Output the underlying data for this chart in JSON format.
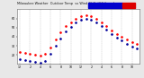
{
  "title": "Milwaukee Weather  Outdoor Temp  vs Wind Chill  (24 Hours)",
  "title_fontsize": 2.5,
  "background_color": "#e8e8e8",
  "plot_bg": "#ffffff",
  "legend_temp_color": "#dd0000",
  "legend_wind_color": "#0000cc",
  "tick_fontsize": 2.3,
  "hours": [
    0,
    1,
    2,
    3,
    4,
    5,
    6,
    7,
    8,
    9,
    10,
    11,
    12,
    13,
    14,
    15,
    16,
    17,
    18,
    19,
    20,
    21,
    22,
    23
  ],
  "temp": [
    23,
    22,
    21,
    20,
    19,
    21,
    28,
    37,
    45,
    52,
    56,
    60,
    63,
    64,
    63,
    60,
    56,
    52,
    47,
    43,
    40,
    37,
    34,
    32
  ],
  "windchill": [
    15,
    14,
    13,
    12,
    11,
    13,
    21,
    30,
    38,
    46,
    51,
    56,
    59,
    60,
    59,
    56,
    52,
    48,
    43,
    39,
    36,
    32,
    29,
    27
  ],
  "ylim": [
    10,
    70
  ],
  "yticks": [
    20,
    30,
    40,
    50,
    60
  ],
  "ytick_labels": [
    "20",
    "30",
    "40",
    "50",
    "60"
  ],
  "xtick_positions": [
    0,
    2,
    4,
    6,
    8,
    10,
    12,
    14,
    16,
    18,
    20,
    22
  ],
  "xtick_labels": [
    "12",
    "2",
    "4",
    "6",
    "8",
    "10",
    "12",
    "2",
    "4",
    "6",
    "8",
    "10"
  ],
  "temp_dot_color": "#ff0000",
  "wind_dot_color": "#000099",
  "grid_color": "#999999",
  "grid_positions": [
    0,
    2,
    4,
    6,
    8,
    10,
    12,
    14,
    16,
    18,
    20,
    22
  ]
}
